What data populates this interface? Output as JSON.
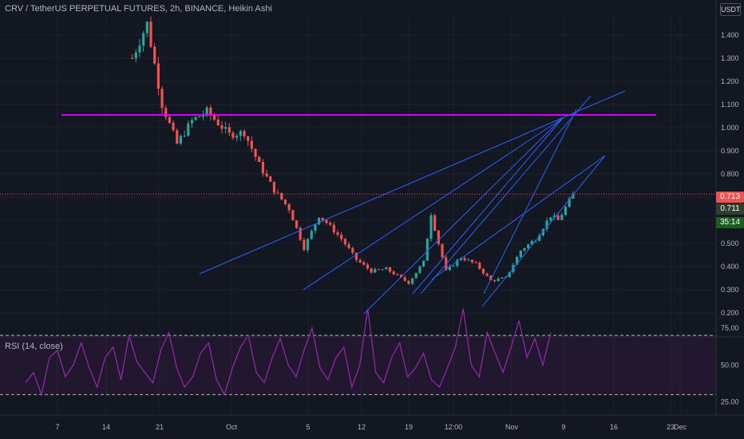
{
  "chart_title": "CRV / TetherUS PERPETUAL FUTURES, 2h, BINANCE, Heikin Ashi",
  "currency_button": "USDT",
  "price_tags": {
    "last": "0.713",
    "mark": "0.711",
    "countdown": "35:14"
  },
  "colors": {
    "background": "#131722",
    "bull": "#26a69a",
    "bear": "#ef5350",
    "trendline": "#2962ff",
    "resistance": "#d500f9",
    "rsi": "#9c27b0",
    "last_tag": "#ef5350",
    "mark_tag": "#2f3e2f",
    "countdown_tag": "#1b5e20"
  },
  "chart_data": [
    {
      "type": "candlestick",
      "title": "CRV / TetherUS PERPETUAL FUTURES, 2h, BINANCE, Heikin Ashi",
      "y_axis": {
        "ticks": [
          "1.400",
          "1.300",
          "1.200",
          "1.100",
          "1.000",
          "0.900",
          "0.800",
          "0.700",
          "0.600",
          "0.500",
          "0.400",
          "0.300",
          "0.200"
        ],
        "range": [
          0.15,
          1.48
        ]
      },
      "x_axis": {
        "ticks": [
          "7",
          "14",
          "21",
          "Oct",
          "5",
          "12",
          "19",
          "12:00",
          "Nov",
          "9",
          "16",
          "23",
          "Dec"
        ]
      },
      "price_path": [
        {
          "x": "Sep 17",
          "y": 1.3
        },
        {
          "x": "Sep 19",
          "y": 1.45
        },
        {
          "x": "Sep 21",
          "y": 1.1
        },
        {
          "x": "Sep 23",
          "y": 0.93
        },
        {
          "x": "Sep 25",
          "y": 1.03
        },
        {
          "x": "Sep 27",
          "y": 1.07
        },
        {
          "x": "Sep 30",
          "y": 0.97
        },
        {
          "x": "Oct 2",
          "y": 0.98
        },
        {
          "x": "Oct 4",
          "y": 0.84
        },
        {
          "x": "Oct 6",
          "y": 0.73
        },
        {
          "x": "Oct 8",
          "y": 0.65
        },
        {
          "x": "Oct 10",
          "y": 0.48
        },
        {
          "x": "Oct 12",
          "y": 0.62
        },
        {
          "x": "Oct 13",
          "y": 0.59
        },
        {
          "x": "Oct 15",
          "y": 0.52
        },
        {
          "x": "Oct 17",
          "y": 0.43
        },
        {
          "x": "Oct 19",
          "y": 0.38
        },
        {
          "x": "Oct 21",
          "y": 0.39
        },
        {
          "x": "Oct 24",
          "y": 0.33
        },
        {
          "x": "Oct 26",
          "y": 0.42
        },
        {
          "x": "Oct 27",
          "y": 0.63
        },
        {
          "x": "Oct 28",
          "y": 0.5
        },
        {
          "x": "Oct 29",
          "y": 0.38
        },
        {
          "x": "Oct 31",
          "y": 0.44
        },
        {
          "x": "Nov 2",
          "y": 0.41
        },
        {
          "x": "Nov 4",
          "y": 0.34
        },
        {
          "x": "Nov 6",
          "y": 0.35
        },
        {
          "x": "Nov 8",
          "y": 0.47
        },
        {
          "x": "Nov 10",
          "y": 0.52
        },
        {
          "x": "Nov 12",
          "y": 0.62
        },
        {
          "x": "Nov 13",
          "y": 0.6
        },
        {
          "x": "Nov 15",
          "y": 0.71
        }
      ],
      "resistance_level": 1.055
    },
    {
      "type": "line",
      "title": "RSI (14, close)",
      "y_axis": {
        "ticks": [
          "75.00",
          "50.00",
          "25.00"
        ],
        "range": [
          15,
          95
        ]
      },
      "bands": [
        70,
        30
      ],
      "series": [
        {
          "values": [
            38,
            45,
            30,
            55,
            60,
            42,
            50,
            65,
            48,
            35,
            55,
            62,
            40,
            70,
            52,
            45,
            38,
            60,
            72,
            48,
            35,
            42,
            58,
            65,
            40,
            30,
            48,
            62,
            70,
            45,
            38,
            55,
            68,
            50,
            42,
            60,
            75,
            48,
            40,
            55,
            62,
            35,
            50,
            88,
            45,
            38,
            55,
            65,
            42,
            48,
            58,
            40,
            35,
            48,
            62,
            88,
            50,
            42,
            72,
            58,
            45,
            62,
            80,
            55,
            68,
            50,
            72
          ]
        }
      ]
    }
  ]
}
